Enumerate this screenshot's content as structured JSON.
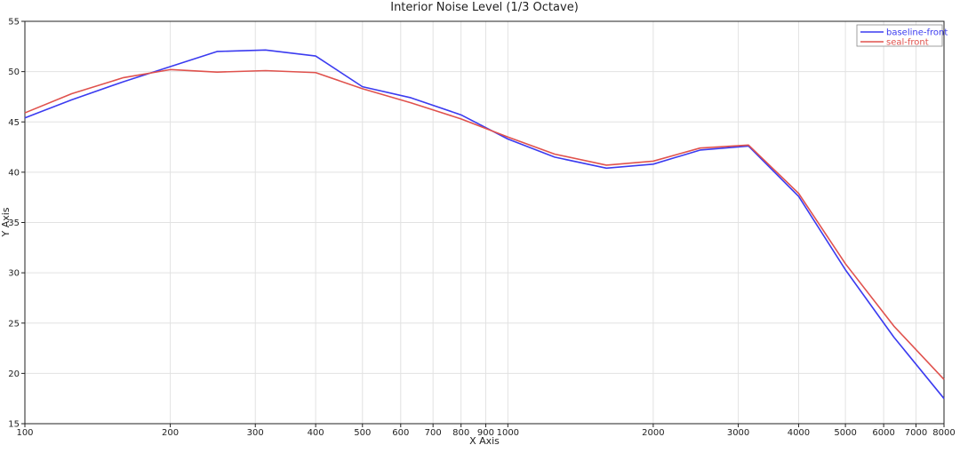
{
  "chart_data": {
    "type": "line",
    "title": "Interior Noise Level (1/3 Octave)",
    "xlabel": "X Axis",
    "ylabel": "Y Axis",
    "xscale": "log",
    "xlim": [
      100,
      8000
    ],
    "ylim": [
      15,
      55
    ],
    "grid": true,
    "legend_position": "top-right",
    "x_ticks": [
      100,
      200,
      300,
      400,
      500,
      600,
      700,
      800,
      900,
      1000,
      2000,
      3000,
      4000,
      5000,
      6000,
      7000,
      8000
    ],
    "x_tick_labels": [
      "100",
      "200",
      "300",
      "400",
      "500",
      "600",
      "700",
      "800",
      "900",
      "1000",
      "2000",
      "3000",
      "4000",
      "5000",
      "6000",
      "7000",
      "8000"
    ],
    "y_ticks": [
      15,
      20,
      25,
      30,
      35,
      40,
      45,
      50,
      55
    ],
    "y_tick_labels": [
      "15",
      "20",
      "25",
      "30",
      "35",
      "40",
      "45",
      "50",
      "55"
    ],
    "x": [
      100,
      125,
      160,
      200,
      250,
      315,
      400,
      500,
      630,
      800,
      1000,
      1250,
      1600,
      2000,
      2500,
      3150,
      4000,
      5000,
      6300,
      8000
    ],
    "series": [
      {
        "name": "baseline-front",
        "color": "#3b3bf0",
        "values": [
          45.4,
          47.2,
          49.0,
          50.5,
          52.0,
          52.15,
          51.55,
          48.5,
          47.4,
          45.7,
          43.3,
          41.5,
          40.4,
          40.8,
          42.2,
          42.6,
          37.6,
          30.3,
          23.6,
          17.5
        ]
      },
      {
        "name": "seal-front",
        "color": "#e0524d",
        "values": [
          45.9,
          47.8,
          49.4,
          50.2,
          49.95,
          50.1,
          49.9,
          48.3,
          46.9,
          45.3,
          43.5,
          41.8,
          40.7,
          41.1,
          42.4,
          42.7,
          37.9,
          30.9,
          24.7,
          19.4
        ]
      }
    ]
  }
}
